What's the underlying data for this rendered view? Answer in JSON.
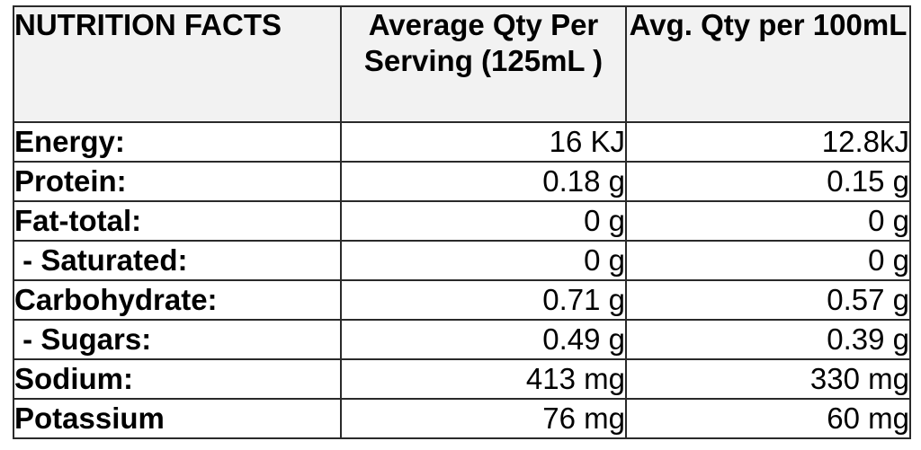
{
  "table": {
    "headers": {
      "nutrient": "NUTRITION FACTS",
      "per_serving": "Average Qty Per Serving (125mL )",
      "per_100ml": "Avg. Qty per 100mL"
    },
    "rows": [
      {
        "nutrient": "Energy:",
        "per_serving": "16 KJ",
        "per_100ml": "12.8kJ"
      },
      {
        "nutrient": "Protein:",
        "per_serving": "0.18 g",
        "per_100ml": "0.15 g"
      },
      {
        "nutrient": "Fat-total:",
        "per_serving": "0 g",
        "per_100ml": "0 g"
      },
      {
        "nutrient": " - Saturated:",
        "per_serving": "0 g",
        "per_100ml": "0 g"
      },
      {
        "nutrient": "Carbohydrate:",
        "per_serving": "0.71 g",
        "per_100ml": "0.57 g"
      },
      {
        "nutrient": " - Sugars:",
        "per_serving": "0.49 g",
        "per_100ml": "0.39 g"
      },
      {
        "nutrient": "Sodium:",
        "per_serving": "413 mg",
        "per_100ml": "330 mg"
      },
      {
        "nutrient": "Potassium",
        "per_serving": "76 mg",
        "per_100ml": "60 mg"
      }
    ]
  }
}
